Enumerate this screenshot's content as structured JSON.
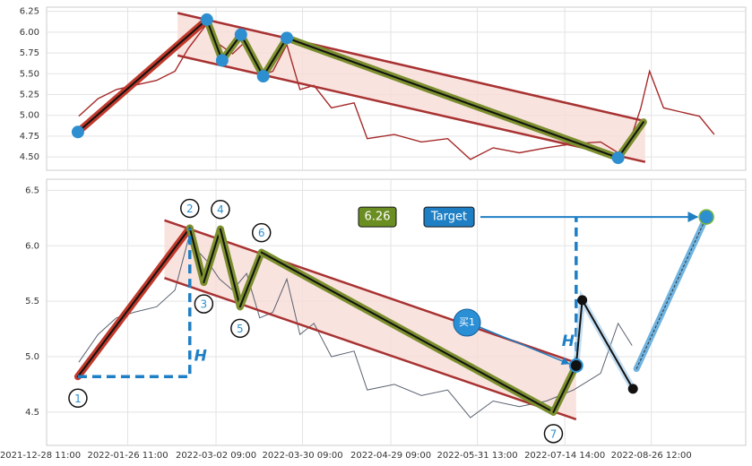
{
  "chart_data": [
    {
      "type": "pattern",
      "xlim": [
        -10,
        797
      ],
      "ylim": [
        4.34,
        6.3
      ],
      "grid": true,
      "yticks": [
        6.25,
        {
          "value": 6,
          "label": "6.00"
        },
        5.75,
        {
          "value": 5.5,
          "label": "5.50"
        },
        5.25,
        {
          "value": 5,
          "label": "5.00"
        },
        4.75,
        {
          "value": 4.5,
          "label": "4.50"
        }
      ],
      "price": {
        "color": "#a52a2a",
        "x": [
          34,
          56,
          77,
          97,
          123,
          144,
          159,
          182,
          195,
          210,
          226,
          241,
          256,
          272,
          287,
          303,
          323,
          349,
          364,
          395,
          426,
          456,
          482,
          508,
          538,
          569,
          600,
          631,
          651,
          667,
          677,
          687,
          703,
          723,
          744,
          761
        ],
        "values": [
          4.99,
          5.2,
          5.31,
          5.36,
          5.42,
          5.53,
          5.8,
          6.12,
          5.85,
          5.74,
          5.9,
          5.47,
          5.53,
          5.85,
          5.31,
          5.36,
          5.09,
          5.15,
          4.72,
          4.77,
          4.68,
          4.72,
          4.47,
          4.61,
          4.55,
          4.61,
          4.66,
          4.68,
          4.55,
          4.77,
          5.09,
          5.53,
          5.09,
          5.04,
          4.99,
          4.77
        ]
      },
      "channel": {
        "color": "#a83232",
        "fill": "#f8dcd6",
        "x": [
          147,
          682
        ],
        "upper": [
          6.23,
          4.93
        ],
        "lower": [
          5.72,
          4.44
        ]
      },
      "pattern": {
        "color": "#7b8f2e",
        "first_color": "#c0392b",
        "marker_color": "#2e8fd0",
        "x": [
          33,
          180.5,
          198,
          219.5,
          245,
          272,
          651,
          680
        ],
        "values": [
          4.8,
          6.15,
          5.66,
          5.97,
          5.47,
          5.93,
          4.49,
          4.92
        ]
      }
    },
    {
      "type": "pattern",
      "xlim": [
        -10,
        797
      ],
      "ylim": [
        4.2,
        6.6
      ],
      "grid": true,
      "yticks": [
        6.5,
        {
          "value": 6,
          "label": "6.0"
        },
        5.5,
        {
          "value": 5,
          "label": "5.0"
        },
        4.5
      ],
      "xticks": [
        {
          "value": -10,
          "label": "2021-12-28 11:00"
        },
        {
          "value": 90,
          "label": "2022-01-26 11:00"
        },
        {
          "value": 191,
          "label": "2022-03-02 09:00"
        },
        {
          "value": 290,
          "label": "2022-03-30 09:00"
        },
        {
          "value": 391,
          "label": "2022-04-29 09:00"
        },
        {
          "value": 490,
          "label": "2022-05-31 13:00"
        },
        {
          "value": 590,
          "label": "2022-07-14 14:00"
        },
        {
          "value": 689,
          "label": "2022-08-26 12:00"
        }
      ],
      "price": {
        "color": "#5a6270",
        "x": [
          34,
          56,
          77,
          97,
          123,
          144,
          159,
          182,
          195,
          210,
          226,
          241,
          256,
          272,
          287,
          303,
          323,
          349,
          364,
          395,
          426,
          456,
          482,
          508,
          538,
          569,
          600,
          631,
          651,
          667
        ],
        "values": [
          4.95,
          5.2,
          5.35,
          5.4,
          5.45,
          5.6,
          6.05,
          5.85,
          5.7,
          5.6,
          5.75,
          5.35,
          5.4,
          5.7,
          5.2,
          5.3,
          5.0,
          5.05,
          4.7,
          4.75,
          4.65,
          4.7,
          4.45,
          4.6,
          4.55,
          4.6,
          4.7,
          4.85,
          5.3,
          5.1
        ]
      },
      "channel": {
        "color": "#a83232",
        "fill": "#f8dcd6",
        "x": [
          132,
          603
        ],
        "upper": [
          6.23,
          4.945
        ],
        "lower": [
          5.71,
          4.435
        ]
      },
      "pattern": {
        "color": "#7b8f2e",
        "first_color": "#c0392b",
        "x": [
          33,
          161,
          177,
          196,
          218.5,
          243,
          577,
          603
        ],
        "values": [
          4.82,
          6.16,
          5.67,
          6.15,
          5.45,
          5.94,
          4.5,
          4.92
        ],
        "point_labels": [
          "1",
          "2",
          "3",
          "4",
          "5",
          "6",
          "7",
          null
        ]
      },
      "height_label": "H",
      "projection": {
        "color": "#111111",
        "x": [
          603,
          610,
          668
        ],
        "values": [
          4.92,
          5.51,
          4.71
        ]
      },
      "target": {
        "label": "Target",
        "color": "#1f7fc4",
        "x": [
          672,
          752
        ],
        "values": [
          4.89,
          6.26
        ]
      },
      "value_box_color": "#6b8e23",
      "buy": {
        "label": "买1",
        "color": "#2b8fd6"
      }
    }
  ]
}
